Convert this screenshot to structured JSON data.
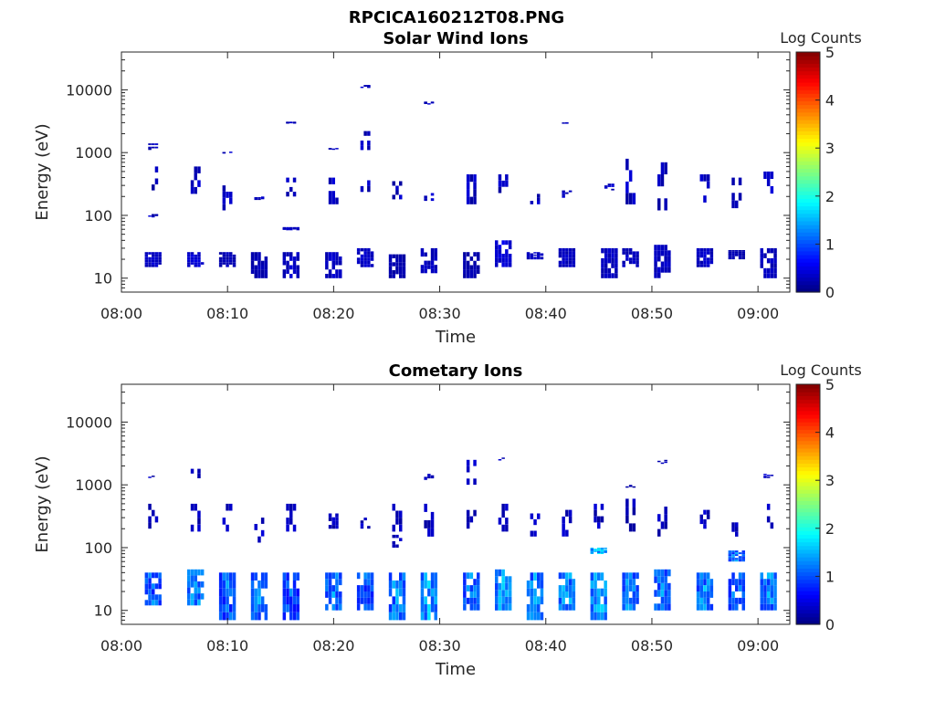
{
  "figure_title": "RPCICA160212T08.PNG",
  "colors": {
    "axis": "#262626",
    "background": "#ffffff"
  },
  "chart_data": [
    {
      "type": "heatmap",
      "title": "Solar Wind Ions",
      "xlabel": "Time",
      "ylabel": "Energy (eV)",
      "x_range": [
        "08:00",
        "09:03"
      ],
      "x_ticks": [
        "08:00",
        "08:10",
        "08:20",
        "08:30",
        "08:40",
        "08:50",
        "09:00"
      ],
      "y_scale": "log",
      "y_range": [
        6,
        40000
      ],
      "y_ticks": [
        "10",
        "100",
        "1000",
        "10000"
      ],
      "colorbar": {
        "label": "Log Counts",
        "range": [
          0,
          5
        ],
        "ticks": [
          "0",
          "1",
          "2",
          "3",
          "4",
          "5"
        ],
        "colormap": "jet"
      },
      "bursts": [
        {
          "t": "08:03",
          "bands": [
            [
              15,
              26
            ],
            [
              250,
              600
            ],
            [
              1100,
              1400
            ],
            [
              95,
              105
            ]
          ],
          "level": 0.4
        },
        {
          "t": "08:07",
          "bands": [
            [
              15,
              26
            ],
            [
              220,
              600
            ]
          ],
          "level": 0.5
        },
        {
          "t": "08:10",
          "bands": [
            [
              15,
              26
            ],
            [
              120,
              300
            ],
            [
              1000,
              1000
            ]
          ],
          "level": 0.3
        },
        {
          "t": "08:13",
          "bands": [
            [
              10,
              26
            ],
            [
              180,
              200
            ]
          ],
          "level": 0.3
        },
        {
          "t": "08:16",
          "bands": [
            [
              10,
              26
            ],
            [
              200,
              400
            ],
            [
              60,
              65
            ],
            [
              3000,
              3000
            ]
          ],
          "level": 0.4
        },
        {
          "t": "08:20",
          "bands": [
            [
              10,
              26
            ],
            [
              150,
              400
            ],
            [
              1150,
              1200
            ]
          ],
          "level": 0.4
        },
        {
          "t": "08:23",
          "bands": [
            [
              15,
              30
            ],
            [
              190,
              450
            ],
            [
              1100,
              2200
            ],
            [
              11000,
              12000
            ]
          ],
          "level": 0.4
        },
        {
          "t": "08:26",
          "bands": [
            [
              10,
              24
            ],
            [
              180,
              350
            ]
          ],
          "level": 0.3
        },
        {
          "t": "08:29",
          "bands": [
            [
              12,
              30
            ],
            [
              170,
              250
            ],
            [
              6000,
              6500
            ]
          ],
          "level": 0.4
        },
        {
          "t": "08:33",
          "bands": [
            [
              10,
              26
            ],
            [
              150,
              450
            ]
          ],
          "level": 0.3
        },
        {
          "t": "08:36",
          "bands": [
            [
              15,
              40
            ],
            [
              180,
              450
            ]
          ],
          "level": 0.5
        },
        {
          "t": "08:39",
          "bands": [
            [
              20,
              26
            ],
            [
              150,
              250
            ]
          ],
          "level": 0.4
        },
        {
          "t": "08:42",
          "bands": [
            [
              15,
              30
            ],
            [
              190,
              250
            ],
            [
              3000,
              3100
            ]
          ],
          "level": 0.4
        },
        {
          "t": "08:46",
          "bands": [
            [
              10,
              30
            ],
            [
              250,
              320
            ]
          ],
          "level": 0.4
        },
        {
          "t": "08:48",
          "bands": [
            [
              15,
              30
            ],
            [
              150,
              800
            ]
          ],
          "level": 0.4
        },
        {
          "t": "08:51",
          "bands": [
            [
              10,
              34
            ],
            [
              120,
              700
            ]
          ],
          "level": 0.4
        },
        {
          "t": "08:55",
          "bands": [
            [
              15,
              30
            ],
            [
              160,
              450
            ]
          ],
          "level": 0.4
        },
        {
          "t": "08:58",
          "bands": [
            [
              20,
              28
            ],
            [
              130,
              400
            ]
          ],
          "level": 0.3
        },
        {
          "t": "09:01",
          "bands": [
            [
              10,
              30
            ],
            [
              170,
              500
            ]
          ],
          "level": 0.4
        }
      ]
    },
    {
      "type": "heatmap",
      "title": "Cometary Ions",
      "xlabel": "Time",
      "ylabel": "Energy (eV)",
      "x_range": [
        "08:00",
        "09:03"
      ],
      "x_ticks": [
        "08:00",
        "08:10",
        "08:20",
        "08:30",
        "08:40",
        "08:50",
        "09:00"
      ],
      "y_scale": "log",
      "y_range": [
        6,
        40000
      ],
      "y_ticks": [
        "10",
        "100",
        "1000",
        "10000"
      ],
      "colorbar": {
        "label": "Log Counts",
        "range": [
          0,
          5
        ],
        "ticks": [
          "0",
          "1",
          "2",
          "3",
          "4",
          "5"
        ],
        "colormap": "jet"
      },
      "bursts": [
        {
          "t": "08:03",
          "bands": [
            [
              12,
              40
            ],
            [
              200,
              500
            ],
            [
              1300,
              1400
            ]
          ],
          "level": 1.3
        },
        {
          "t": "08:07",
          "bands": [
            [
              12,
              45
            ],
            [
              180,
              500
            ],
            [
              900,
              1800
            ]
          ],
          "level": 1.5
        },
        {
          "t": "08:10",
          "bands": [
            [
              7,
              40
            ],
            [
              180,
              500
            ]
          ],
          "level": 1.3
        },
        {
          "t": "08:13",
          "bands": [
            [
              7,
              40
            ],
            [
              120,
              300
            ]
          ],
          "level": 1.4
        },
        {
          "t": "08:16",
          "bands": [
            [
              7,
              40
            ],
            [
              180,
              500
            ]
          ],
          "level": 1.2
        },
        {
          "t": "08:20",
          "bands": [
            [
              10,
              40
            ],
            [
              200,
              350
            ]
          ],
          "level": 1.5
        },
        {
          "t": "08:23",
          "bands": [
            [
              10,
              40
            ],
            [
              200,
              300
            ]
          ],
          "level": 1.3
        },
        {
          "t": "08:26",
          "bands": [
            [
              7,
              40
            ],
            [
              180,
              500
            ],
            [
              100,
              160
            ]
          ],
          "level": 1.5
        },
        {
          "t": "08:29",
          "bands": [
            [
              7,
              40
            ],
            [
              150,
              500
            ],
            [
              1200,
              1500
            ]
          ],
          "level": 1.7
        },
        {
          "t": "08:33",
          "bands": [
            [
              10,
              40
            ],
            [
              200,
              500
            ],
            [
              1000,
              2500
            ]
          ],
          "level": 1.4
        },
        {
          "t": "08:36",
          "bands": [
            [
              10,
              45
            ],
            [
              180,
              500
            ],
            [
              2500,
              2800
            ]
          ],
          "level": 1.6
        },
        {
          "t": "08:39",
          "bands": [
            [
              7,
              40
            ],
            [
              150,
              350
            ]
          ],
          "level": 1.5
        },
        {
          "t": "08:42",
          "bands": [
            [
              10,
              40
            ],
            [
              150,
              400
            ]
          ],
          "level": 1.6
        },
        {
          "t": "08:45",
          "bands": [
            [
              7,
              40
            ],
            [
              200,
              500
            ],
            [
              80,
              100
            ]
          ],
          "level": 1.7
        },
        {
          "t": "08:48",
          "bands": [
            [
              10,
              40
            ],
            [
              180,
              600
            ],
            [
              900,
              1000
            ]
          ],
          "level": 1.5
        },
        {
          "t": "08:51",
          "bands": [
            [
              10,
              45
            ],
            [
              150,
              450
            ],
            [
              2200,
              2500
            ]
          ],
          "level": 1.4
        },
        {
          "t": "08:55",
          "bands": [
            [
              10,
              40
            ],
            [
              200,
              400
            ]
          ],
          "level": 1.5
        },
        {
          "t": "08:58",
          "bands": [
            [
              10,
              40
            ],
            [
              150,
              300
            ],
            [
              60,
              90
            ]
          ],
          "level": 1.4
        },
        {
          "t": "09:01",
          "bands": [
            [
              10,
              40
            ],
            [
              200,
              500
            ],
            [
              1300,
              1500
            ]
          ],
          "level": 1.5
        }
      ]
    }
  ]
}
